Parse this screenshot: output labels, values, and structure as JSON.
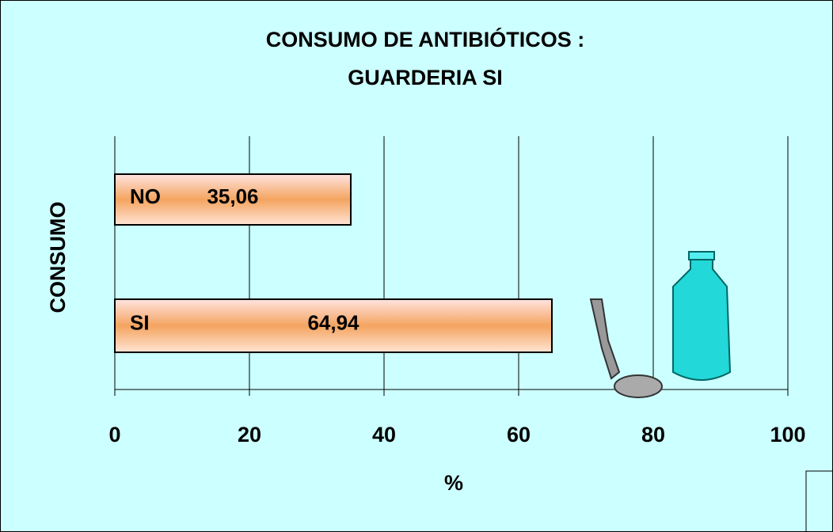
{
  "chart_data": {
    "type": "bar",
    "orientation": "horizontal",
    "title": [
      "CONSUMO DE ANTIBIÓTICOS :",
      "GUARDERIA SI"
    ],
    "categories": [
      "NO",
      "SI"
    ],
    "values": [
      35.06,
      64.94
    ],
    "value_labels": [
      "35,06",
      "64,94"
    ],
    "x_label": "%",
    "y_label": "CONSUMO",
    "xlim": [
      0,
      100
    ],
    "xticks": [
      0,
      20,
      40,
      60,
      80,
      100
    ],
    "grid": true,
    "color": "#f4a460"
  }
}
